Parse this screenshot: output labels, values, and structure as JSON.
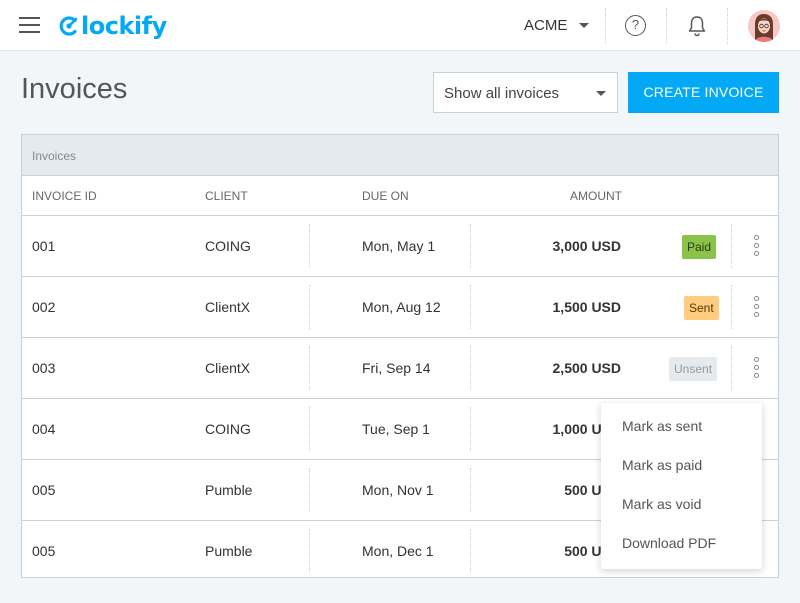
{
  "app": {
    "logo_text": "lockify",
    "brand_color": "#03a9f4"
  },
  "topbar": {
    "workspace": "ACME",
    "help_glyph": "?"
  },
  "header": {
    "title": "Invoices",
    "filter": {
      "selected": "Show all invoices"
    },
    "create_label": "CREATE INVOICE"
  },
  "table": {
    "caption": "Invoices",
    "columns": {
      "id": "INVOICE ID",
      "client": "CLIENT",
      "due": "DUE ON",
      "amount": "AMOUNT"
    },
    "rows": [
      {
        "id": "001",
        "client": "COING",
        "due": "Mon, May 1",
        "amount": "3,000 USD",
        "status": "Paid",
        "status_kind": "paid"
      },
      {
        "id": "002",
        "client": "ClientX",
        "due": "Mon, Aug 12",
        "amount": "1,500 USD",
        "status": "Sent",
        "status_kind": "sent"
      },
      {
        "id": "003",
        "client": "ClientX",
        "due": "Fri, Sep 14",
        "amount": "2,500 USD",
        "status": "Unsent",
        "status_kind": "unsent"
      },
      {
        "id": "004",
        "client": "COING",
        "due": "Tue, Sep 1",
        "amount": "1,000 USD",
        "status": "",
        "status_kind": ""
      },
      {
        "id": "005",
        "client": "Pumble",
        "due": "Mon, Nov 1",
        "amount": "500 USD",
        "status": "",
        "status_kind": ""
      },
      {
        "id": "005",
        "client": "Pumble",
        "due": "Mon, Dec 1",
        "amount": "500 USD",
        "status": "",
        "status_kind": ""
      }
    ]
  },
  "context_menu": {
    "items": [
      {
        "label": "Mark as sent"
      },
      {
        "label": "Mark as paid"
      },
      {
        "label": "Mark as void"
      },
      {
        "label": "Download PDF"
      }
    ]
  }
}
